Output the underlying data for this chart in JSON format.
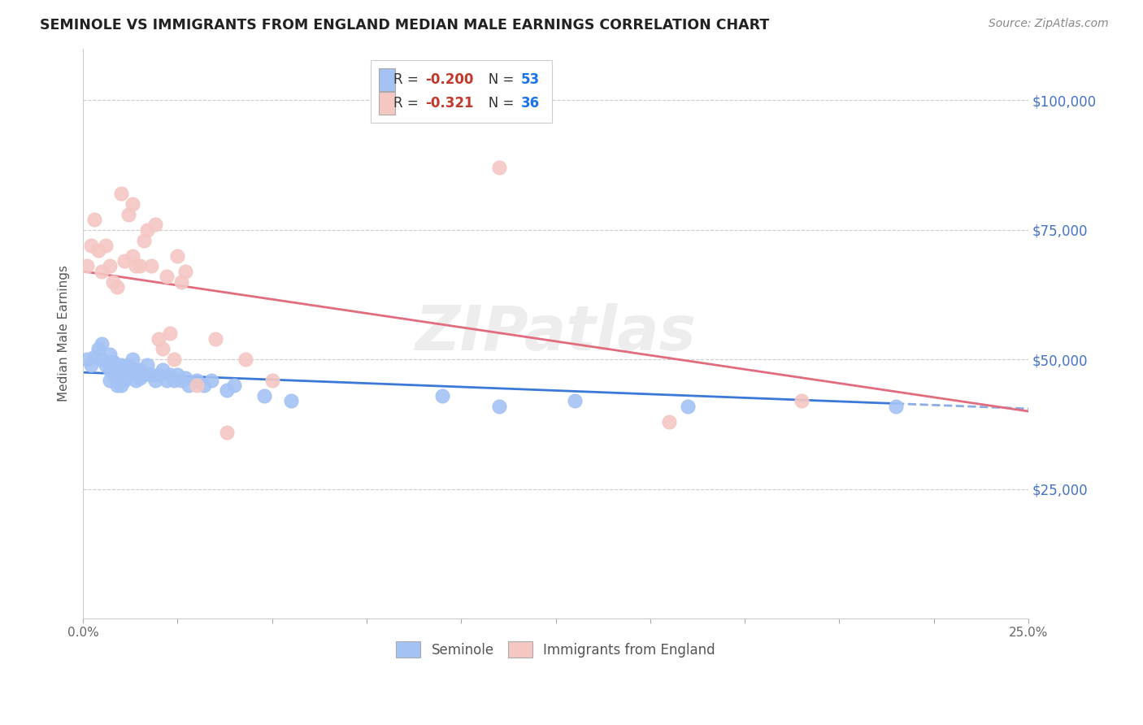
{
  "title": "SEMINOLE VS IMMIGRANTS FROM ENGLAND MEDIAN MALE EARNINGS CORRELATION CHART",
  "source": "Source: ZipAtlas.com",
  "ylabel": "Median Male Earnings",
  "xlim": [
    0.0,
    0.25
  ],
  "ylim": [
    0,
    110000
  ],
  "yticks": [
    0,
    25000,
    50000,
    75000,
    100000
  ],
  "ytick_labels": [
    "",
    "$25,000",
    "$50,000",
    "$75,000",
    "$100,000"
  ],
  "xticks": [
    0.0,
    0.025,
    0.05,
    0.075,
    0.1,
    0.125,
    0.15,
    0.175,
    0.2,
    0.225,
    0.25
  ],
  "xtick_labels": [
    "0.0%",
    "",
    "",
    "",
    "",
    "",
    "",
    "",
    "",
    "",
    "25.0%"
  ],
  "blue_color": "#a4c2f4",
  "pink_color": "#f4c7c3",
  "blue_line_color": "#3c78d8",
  "pink_line_color": "#e06c7e",
  "legend_R_blue": "-0.200",
  "legend_N_blue": "53",
  "legend_R_pink": "-0.321",
  "legend_N_pink": "36",
  "watermark": "ZIPatlas",
  "seminole_x": [
    0.001,
    0.002,
    0.003,
    0.004,
    0.005,
    0.005,
    0.006,
    0.007,
    0.007,
    0.007,
    0.008,
    0.008,
    0.009,
    0.009,
    0.009,
    0.01,
    0.01,
    0.01,
    0.011,
    0.011,
    0.012,
    0.012,
    0.013,
    0.013,
    0.014,
    0.014,
    0.015,
    0.015,
    0.016,
    0.017,
    0.018,
    0.019,
    0.02,
    0.021,
    0.022,
    0.023,
    0.024,
    0.025,
    0.026,
    0.027,
    0.028,
    0.03,
    0.032,
    0.034,
    0.038,
    0.04,
    0.048,
    0.055,
    0.095,
    0.11,
    0.13,
    0.16,
    0.215
  ],
  "seminole_y": [
    50000,
    49000,
    50500,
    52000,
    53000,
    50000,
    49000,
    51000,
    48000,
    46000,
    49500,
    47000,
    49000,
    47500,
    45000,
    49000,
    47000,
    45000,
    48500,
    46000,
    49000,
    47000,
    50000,
    47500,
    48000,
    46000,
    48000,
    46500,
    47000,
    49000,
    47000,
    46000,
    47000,
    48000,
    46000,
    47000,
    46000,
    47000,
    46000,
    46500,
    45000,
    46000,
    45000,
    46000,
    44000,
    45000,
    43000,
    42000,
    43000,
    41000,
    42000,
    41000,
    41000
  ],
  "england_x": [
    0.001,
    0.002,
    0.003,
    0.004,
    0.005,
    0.006,
    0.007,
    0.008,
    0.009,
    0.01,
    0.011,
    0.012,
    0.013,
    0.013,
    0.014,
    0.015,
    0.016,
    0.017,
    0.018,
    0.019,
    0.02,
    0.021,
    0.022,
    0.023,
    0.024,
    0.025,
    0.026,
    0.027,
    0.03,
    0.035,
    0.038,
    0.043,
    0.05,
    0.11,
    0.155,
    0.19
  ],
  "england_y": [
    68000,
    72000,
    77000,
    71000,
    67000,
    72000,
    68000,
    65000,
    64000,
    82000,
    69000,
    78000,
    80000,
    70000,
    68000,
    68000,
    73000,
    75000,
    68000,
    76000,
    54000,
    52000,
    66000,
    55000,
    50000,
    70000,
    65000,
    67000,
    45000,
    54000,
    36000,
    50000,
    46000,
    87000,
    38000,
    42000
  ]
}
